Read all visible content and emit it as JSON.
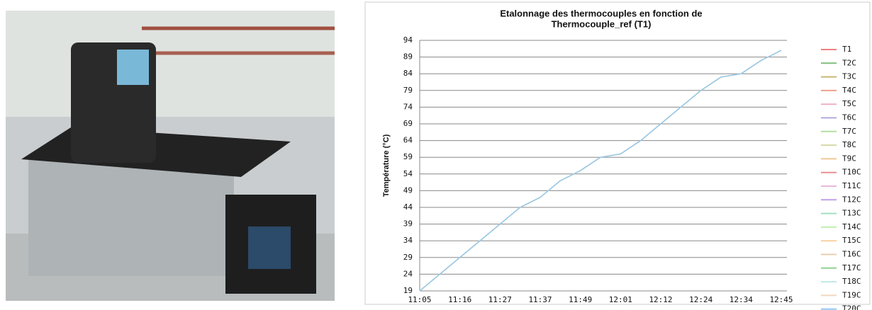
{
  "chart_data": {
    "type": "line",
    "title": [
      "Etalonnage des thermocouples en fonction de",
      "Thermocouple_ref (T1)"
    ],
    "y_label": "Température (°C)",
    "categories": [
      "11:05",
      null,
      "11:16",
      null,
      "11:27",
      null,
      "11:37",
      null,
      "11:49",
      null,
      "12:01",
      null,
      "12:12",
      null,
      "12:24",
      null,
      "12:34",
      null,
      "12:45"
    ],
    "ylim": [
      19,
      94
    ],
    "yticks": [
      19,
      24,
      29,
      34,
      39,
      44,
      49,
      54,
      59,
      64,
      69,
      74,
      79,
      84,
      89,
      94
    ],
    "grid": true,
    "legend": "right",
    "series": [
      {
        "name": "T1",
        "color": "#f08080",
        "values": [
          19,
          24,
          29,
          34,
          39,
          44,
          47,
          52,
          55,
          59,
          60,
          64,
          69,
          74,
          79,
          83,
          84,
          88,
          91
        ]
      },
      {
        "name": "T2C",
        "color": "#7fbf7f",
        "values": [
          19,
          24,
          29,
          34,
          39,
          44,
          47,
          52,
          55,
          59,
          60,
          64,
          69,
          74,
          79,
          83,
          84,
          88,
          91
        ]
      },
      {
        "name": "T3C",
        "color": "#c8b870",
        "values": [
          19,
          24,
          29,
          34,
          39,
          44,
          47,
          52,
          55,
          59,
          60,
          64,
          69,
          74,
          79,
          83,
          84,
          88,
          91
        ]
      },
      {
        "name": "T4C",
        "color": "#f0a090",
        "values": [
          19,
          24,
          29,
          34,
          39,
          44,
          47,
          52,
          55,
          59,
          60,
          64,
          69,
          74,
          79,
          83,
          84,
          88,
          91
        ]
      },
      {
        "name": "T5C",
        "color": "#f0b0c8",
        "values": [
          19,
          24,
          29,
          34,
          39,
          44,
          47,
          52,
          55,
          59,
          60,
          64,
          69,
          74,
          79,
          83,
          84,
          88,
          91
        ]
      },
      {
        "name": "T6C",
        "color": "#b0a8e0",
        "values": [
          19,
          24,
          29,
          34,
          39,
          44,
          47,
          52,
          55,
          59,
          60,
          64,
          69,
          74,
          79,
          83,
          84,
          88,
          91
        ]
      },
      {
        "name": "T7C",
        "color": "#b0e0a0",
        "values": [
          19,
          24,
          29,
          34,
          39,
          44,
          47,
          52,
          55,
          59,
          60,
          64,
          69,
          74,
          79,
          83,
          84,
          88,
          91
        ]
      },
      {
        "name": "T8C",
        "color": "#d8d8a8",
        "values": [
          19,
          24,
          29,
          34,
          39,
          44,
          47,
          52,
          55,
          59,
          60,
          64,
          69,
          74,
          79,
          83,
          84,
          88,
          91
        ]
      },
      {
        "name": "T9C",
        "color": "#f0c890",
        "values": [
          19,
          24,
          29,
          34,
          39,
          44,
          47,
          52,
          55,
          59,
          60,
          64,
          69,
          74,
          79,
          83,
          84,
          88,
          91
        ]
      },
      {
        "name": "T10C",
        "color": "#e89090",
        "values": [
          19,
          24,
          29,
          34,
          39,
          44,
          47,
          52,
          55,
          59,
          60,
          64,
          69,
          74,
          79,
          83,
          84,
          88,
          91
        ]
      },
      {
        "name": "T11C",
        "color": "#e8b8e0",
        "values": [
          19,
          24,
          29,
          34,
          39,
          44,
          47,
          52,
          55,
          59,
          60,
          64,
          69,
          74,
          79,
          83,
          84,
          88,
          91
        ]
      },
      {
        "name": "T12C",
        "color": "#c0a0e8",
        "values": [
          19,
          24,
          29,
          34,
          39,
          44,
          47,
          52,
          55,
          59,
          60,
          64,
          69,
          74,
          79,
          83,
          84,
          88,
          91
        ]
      },
      {
        "name": "T13C",
        "color": "#a0e0c0",
        "values": [
          19,
          24,
          29,
          34,
          39,
          44,
          47,
          52,
          55,
          59,
          60,
          64,
          69,
          74,
          79,
          83,
          84,
          88,
          91
        ]
      },
      {
        "name": "T14C",
        "color": "#c0f0b0",
        "values": [
          19,
          24,
          29,
          34,
          39,
          44,
          47,
          52,
          55,
          59,
          60,
          64,
          69,
          74,
          79,
          83,
          84,
          88,
          91
        ]
      },
      {
        "name": "T15C",
        "color": "#f8d0a0",
        "values": [
          19,
          24,
          29,
          34,
          39,
          44,
          47,
          52,
          55,
          59,
          60,
          64,
          69,
          74,
          79,
          83,
          84,
          88,
          91
        ]
      },
      {
        "name": "T16C",
        "color": "#e8d0b0",
        "values": [
          19,
          24,
          29,
          34,
          39,
          44,
          47,
          52,
          55,
          59,
          60,
          64,
          69,
          74,
          79,
          83,
          84,
          88,
          91
        ]
      },
      {
        "name": "T17C",
        "color": "#90d090",
        "values": [
          19,
          24,
          29,
          34,
          39,
          44,
          47,
          52,
          55,
          59,
          60,
          64,
          69,
          74,
          79,
          83,
          84,
          88,
          91
        ]
      },
      {
        "name": "T18C",
        "color": "#c0e8e8",
        "values": [
          19,
          24,
          29,
          34,
          39,
          44,
          47,
          52,
          55,
          59,
          60,
          64,
          69,
          74,
          79,
          83,
          84,
          88,
          91
        ]
      },
      {
        "name": "T19C",
        "color": "#f0d8c0",
        "values": [
          19,
          24,
          29,
          34,
          39,
          44,
          47,
          52,
          55,
          59,
          60,
          64,
          69,
          74,
          79,
          83,
          84,
          88,
          91
        ]
      },
      {
        "name": "T20C",
        "color": "#90c8f0",
        "values": [
          19,
          24,
          29,
          34,
          39,
          44,
          47,
          52,
          55,
          59,
          60,
          64,
          69,
          74,
          79,
          83,
          84,
          88,
          91
        ]
      }
    ]
  }
}
